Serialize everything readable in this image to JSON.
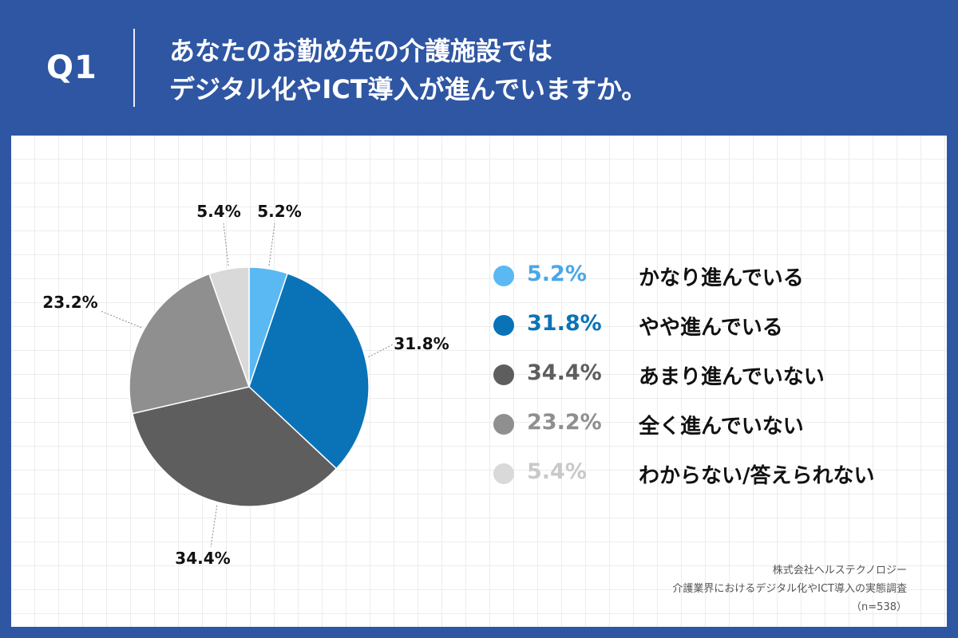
{
  "header": {
    "qnum": "Q1",
    "title_line1": "あなたのお勤め先の介護施設では",
    "title_line2": "デジタル化やICT導入が進んでいますか。"
  },
  "chart_data": {
    "type": "pie",
    "start_angle_deg": 0,
    "direction": "clockwise",
    "slices": [
      {
        "label": "かなり進んでいる",
        "value": 5.2,
        "display": "5.2%",
        "color": "#5ab8f2",
        "text_color": "#4aa7e8"
      },
      {
        "label": "やや進んでいる",
        "value": 31.8,
        "display": "31.8%",
        "color": "#0a73b8",
        "text_color": "#0a73b8"
      },
      {
        "label": "あまり進んでいない",
        "value": 34.4,
        "display": "34.4%",
        "color": "#5e5e5e",
        "text_color": "#5e5e5e"
      },
      {
        "label": "全く進んでいない",
        "value": 23.2,
        "display": "23.2%",
        "color": "#8f8f8f",
        "text_color": "#8f8f8f"
      },
      {
        "label": "わからない/答えられない",
        "value": 5.4,
        "display": "5.4%",
        "color": "#d9d9d9",
        "text_color": "#c9c9c9"
      }
    ]
  },
  "source": {
    "line1": "株式会社ヘルステクノロジー",
    "line2": "介護業界におけるデジタル化やICT導入の実態調査",
    "line3": "（n=538）"
  },
  "colors": {
    "background": "#2f56a3",
    "panel": "#ffffff"
  }
}
